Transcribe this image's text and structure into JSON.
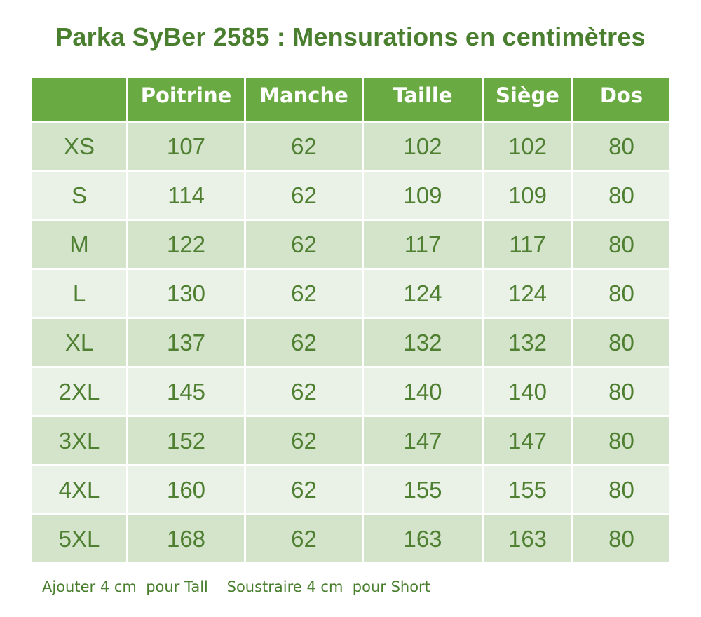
{
  "title": "Parka SyBer 2585 : Mensurations en centimètres",
  "table": {
    "headers": [
      "",
      "Poitrine",
      "Manche",
      "Taille",
      "Siège",
      "Dos"
    ],
    "rows": [
      [
        "XS",
        "107",
        "62",
        "102",
        "102",
        "80"
      ],
      [
        "S",
        "114",
        "62",
        "109",
        "109",
        "80"
      ],
      [
        "M",
        "122",
        "62",
        "117",
        "117",
        "80"
      ],
      [
        "L",
        "130",
        "62",
        "124",
        "124",
        "80"
      ],
      [
        "XL",
        "137",
        "62",
        "132",
        "132",
        "80"
      ],
      [
        "2XL",
        "145",
        "62",
        "140",
        "140",
        "80"
      ],
      [
        "3XL",
        "152",
        "62",
        "147",
        "147",
        "80"
      ],
      [
        "4XL",
        "160",
        "62",
        "155",
        "155",
        "80"
      ],
      [
        "5XL",
        "168",
        "62",
        "163",
        "163",
        "80"
      ]
    ]
  },
  "footnote": {
    "tall": "Ajouter 4 cm  pour Tall",
    "short": "Soustraire 4 cm  pour Short"
  },
  "colors": {
    "title": "#4a7f2f",
    "header_bg": "#6aaa42",
    "header_text": "#ffffff",
    "row_dark": "#d3e4cb",
    "row_light": "#eaf1e6",
    "cell_text": "#4f7f31"
  }
}
